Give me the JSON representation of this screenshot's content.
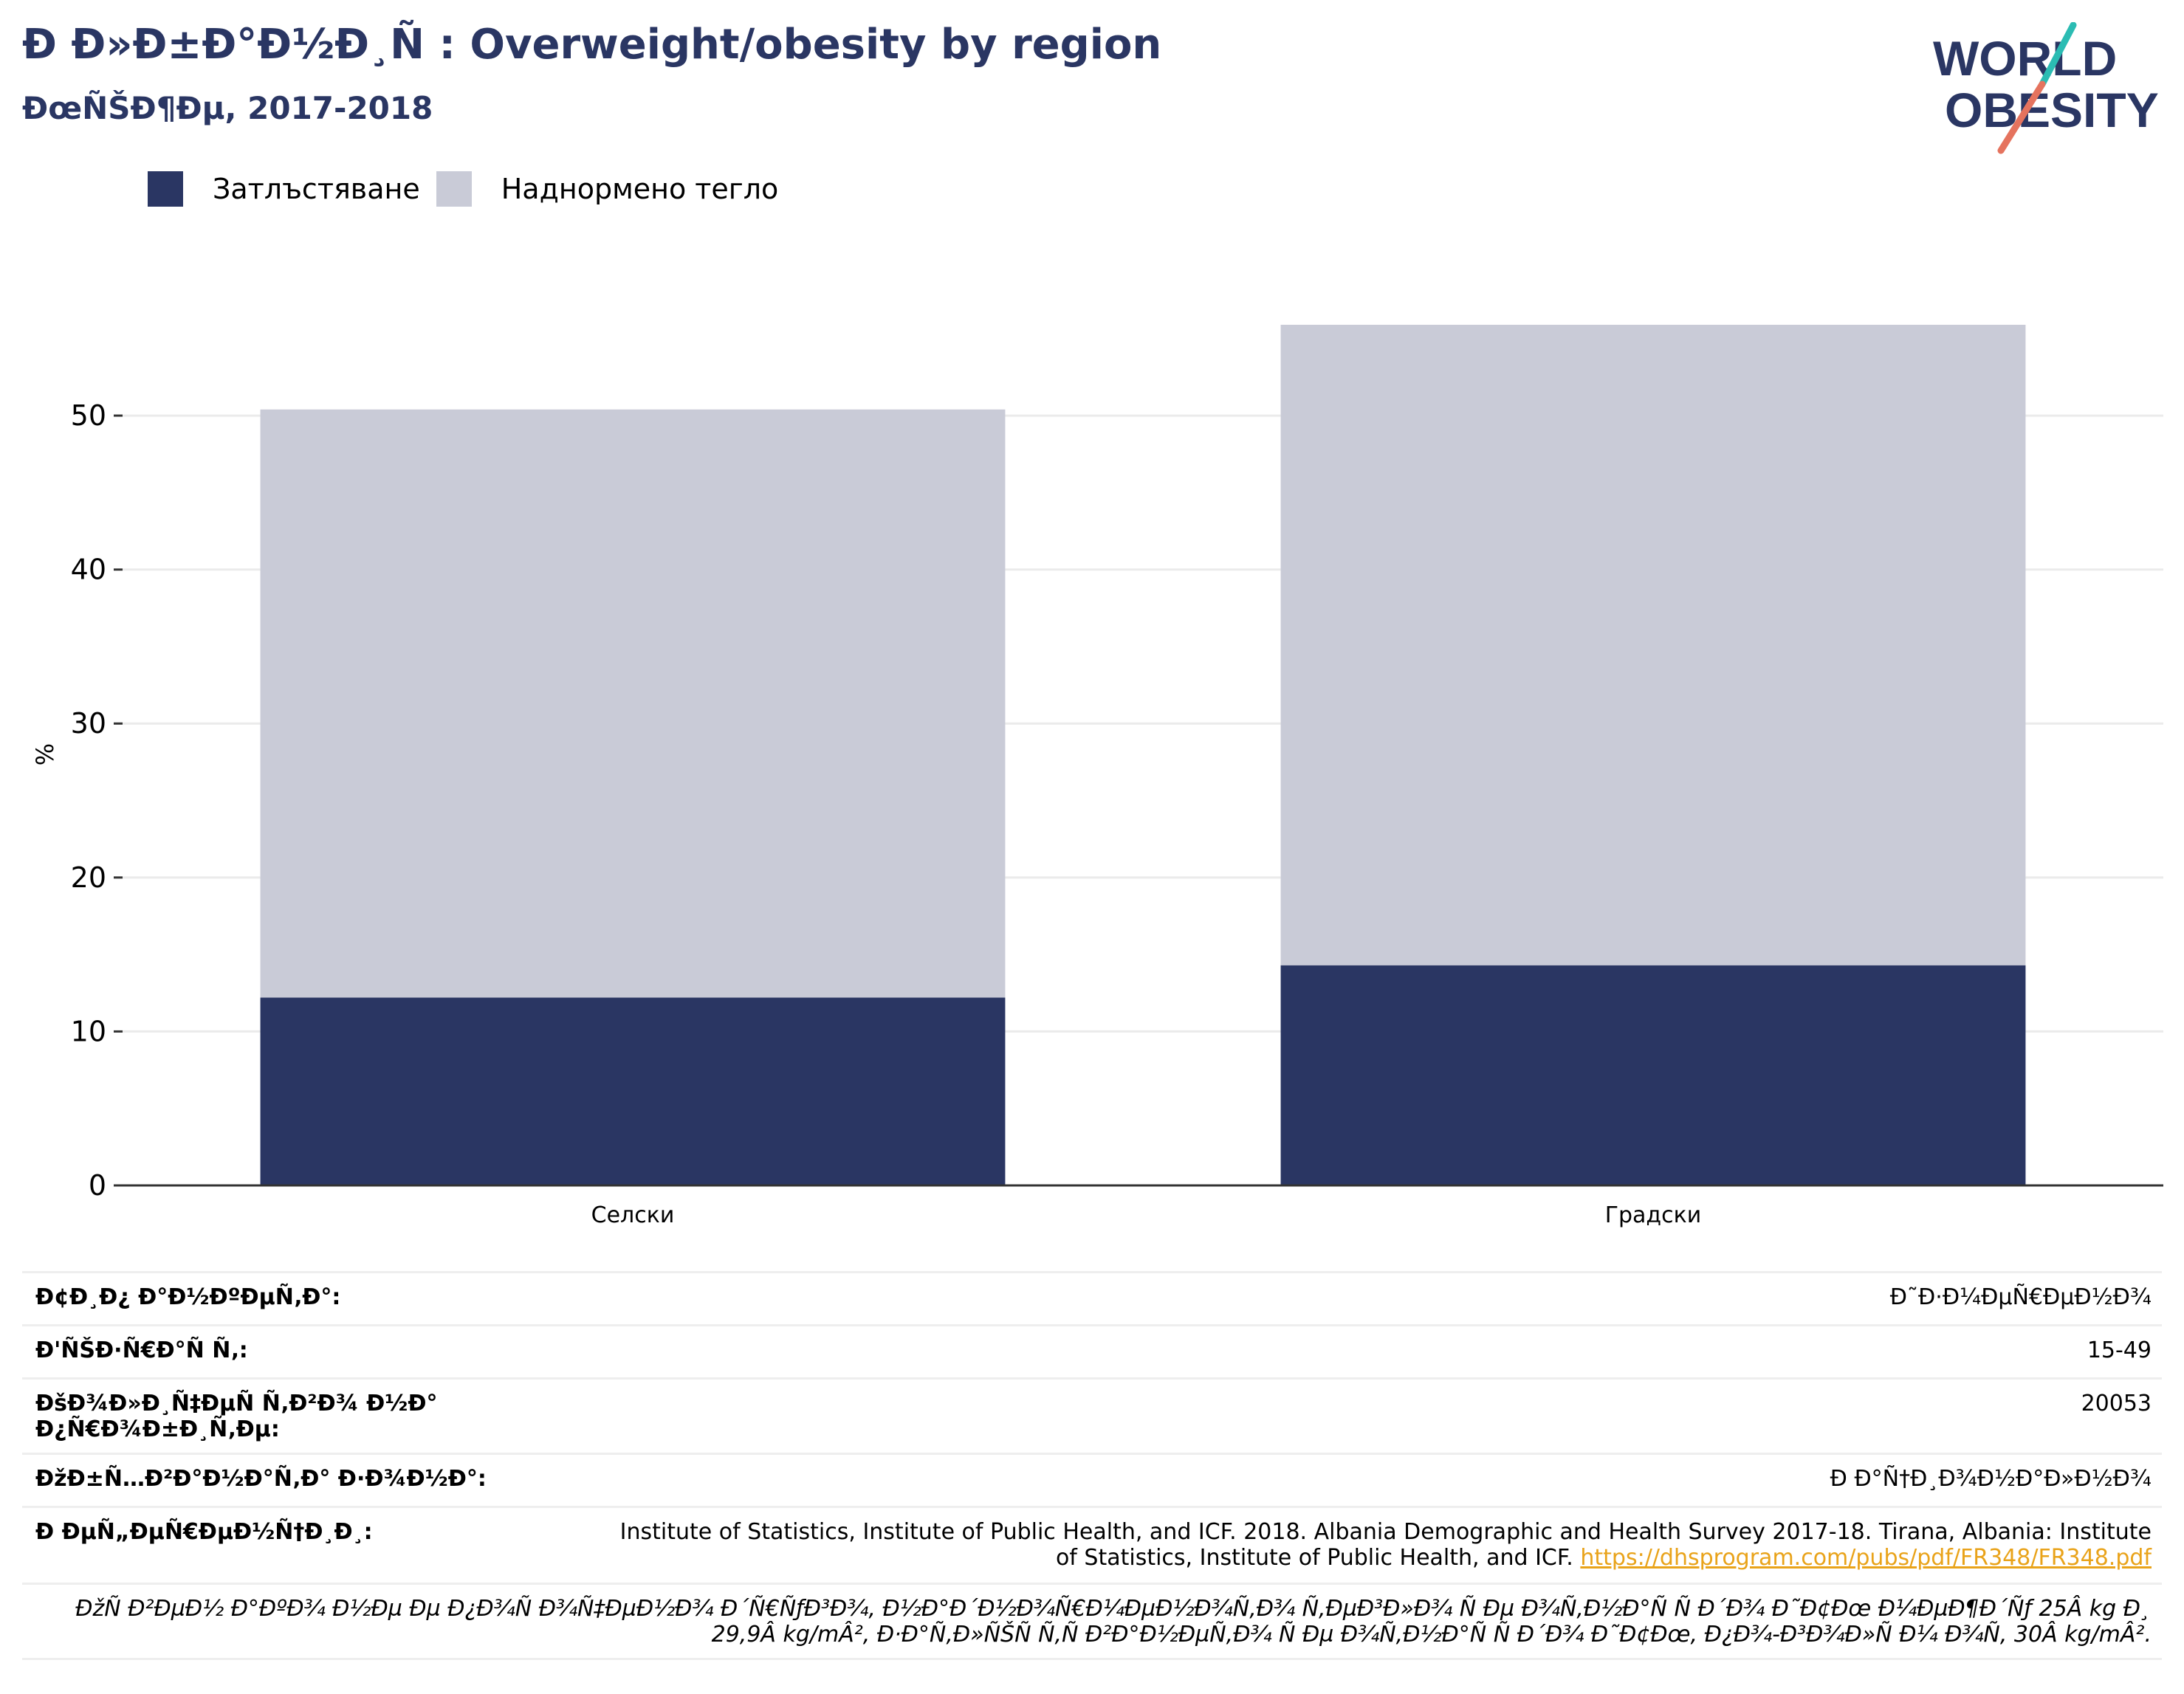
{
  "header": {
    "title": "Ð Ð»Ð±Ð°Ð½Ð¸Ñ : Overweight/obesity by region",
    "subtitle": "ÐœÑŠÐ¶Ðµ, 2017-2018"
  },
  "logo": {
    "line1": "WORLD",
    "line2": "OBESITY"
  },
  "colors": {
    "obesity": "#2a3663",
    "overweight": "#c9cbd7",
    "link": "#e9a31a",
    "text": "#2a3663"
  },
  "chart_data": {
    "type": "bar",
    "stacked": true,
    "categories": [
      "Селски",
      "Градски"
    ],
    "series": [
      {
        "name": "Затлъстяване",
        "values": [
          12.2,
          14.3
        ],
        "color": "#2a3663"
      },
      {
        "name": "Наднормено тегло",
        "values": [
          38.2,
          41.6
        ],
        "color": "#c9cbd7"
      }
    ],
    "ylabel": "%",
    "ylim": [
      0,
      55.9
    ],
    "yticks": [
      0,
      10,
      20,
      30,
      40,
      50
    ],
    "grid": true,
    "legend_position": "top-left"
  },
  "meta": {
    "rows": [
      {
        "label": "Ð¢Ð¸Ð¿ Ð°Ð½ÐºÐµÑ‚Ð°:",
        "value": "Ð˜Ð·Ð¼ÐµÑ€ÐµÐ½Ð¾"
      },
      {
        "label": "Ð'ÑŠÐ·Ñ€Ð°Ñ Ñ‚:",
        "value": "15-49"
      },
      {
        "label": "ÐšÐ¾Ð»Ð¸Ñ‡ÐµÑ Ñ‚Ð²Ð¾ Ð½Ð° Ð¿Ñ€Ð¾Ð±Ð¸Ñ‚Ðµ:",
        "value": "20053"
      },
      {
        "label": "ÐžÐ±Ñ…Ð²Ð°Ð½Ð°Ñ‚Ð° Ð·Ð¾Ð½Ð°:",
        "value": "Ð Ð°Ñ†Ð¸Ð¾Ð½Ð°Ð»Ð½Ð¾"
      },
      {
        "label": "Ð ÐµÑ„ÐµÑ€ÐµÐ½Ñ†Ð¸Ð¸:",
        "value": "Institute of Statistics, Institute of Public Health, and ICF. 2018. Albania Demographic and Health Survey 2017-18. Tirana, Albania: Institute of Statistics, Institute of Public Health, and ICF.",
        "link": "https://dhsprogram.com/pubs/pdf/FR348/FR348.pdf"
      }
    ],
    "note": "ÐžÑ Ð²ÐµÐ½ Ð°ÐºÐ¾ Ð½Ðµ Ðµ Ð¿Ð¾Ñ Ð¾Ñ‡ÐµÐ½Ð¾ Ð´Ñ€ÑƒÐ³Ð¾, Ð½Ð°Ð´Ð½Ð¾Ñ€Ð¼ÐµÐ½Ð¾Ñ‚Ð¾ Ñ‚ÐµÐ³Ð»Ð¾ Ñ Ðµ Ð¾Ñ‚Ð½Ð°Ñ Ñ Ð´Ð¾ Ð˜Ð¢Ðœ Ð¼ÐµÐ¶Ð´Ñƒ 25Â kg Ð¸ 29,9Â kg/mÂ², Ð·Ð°Ñ‚Ð»ÑŠÑ Ñ‚Ñ Ð²Ð°Ð½ÐµÑ‚Ð¾ Ñ Ðµ Ð¾Ñ‚Ð½Ð°Ñ Ñ Ð´Ð¾ Ð˜Ð¢Ðœ, Ð¿Ð¾-Ð³Ð¾Ð»Ñ Ð¼ Ð¾Ñ‚ 30Â kg/mÂ²."
  }
}
